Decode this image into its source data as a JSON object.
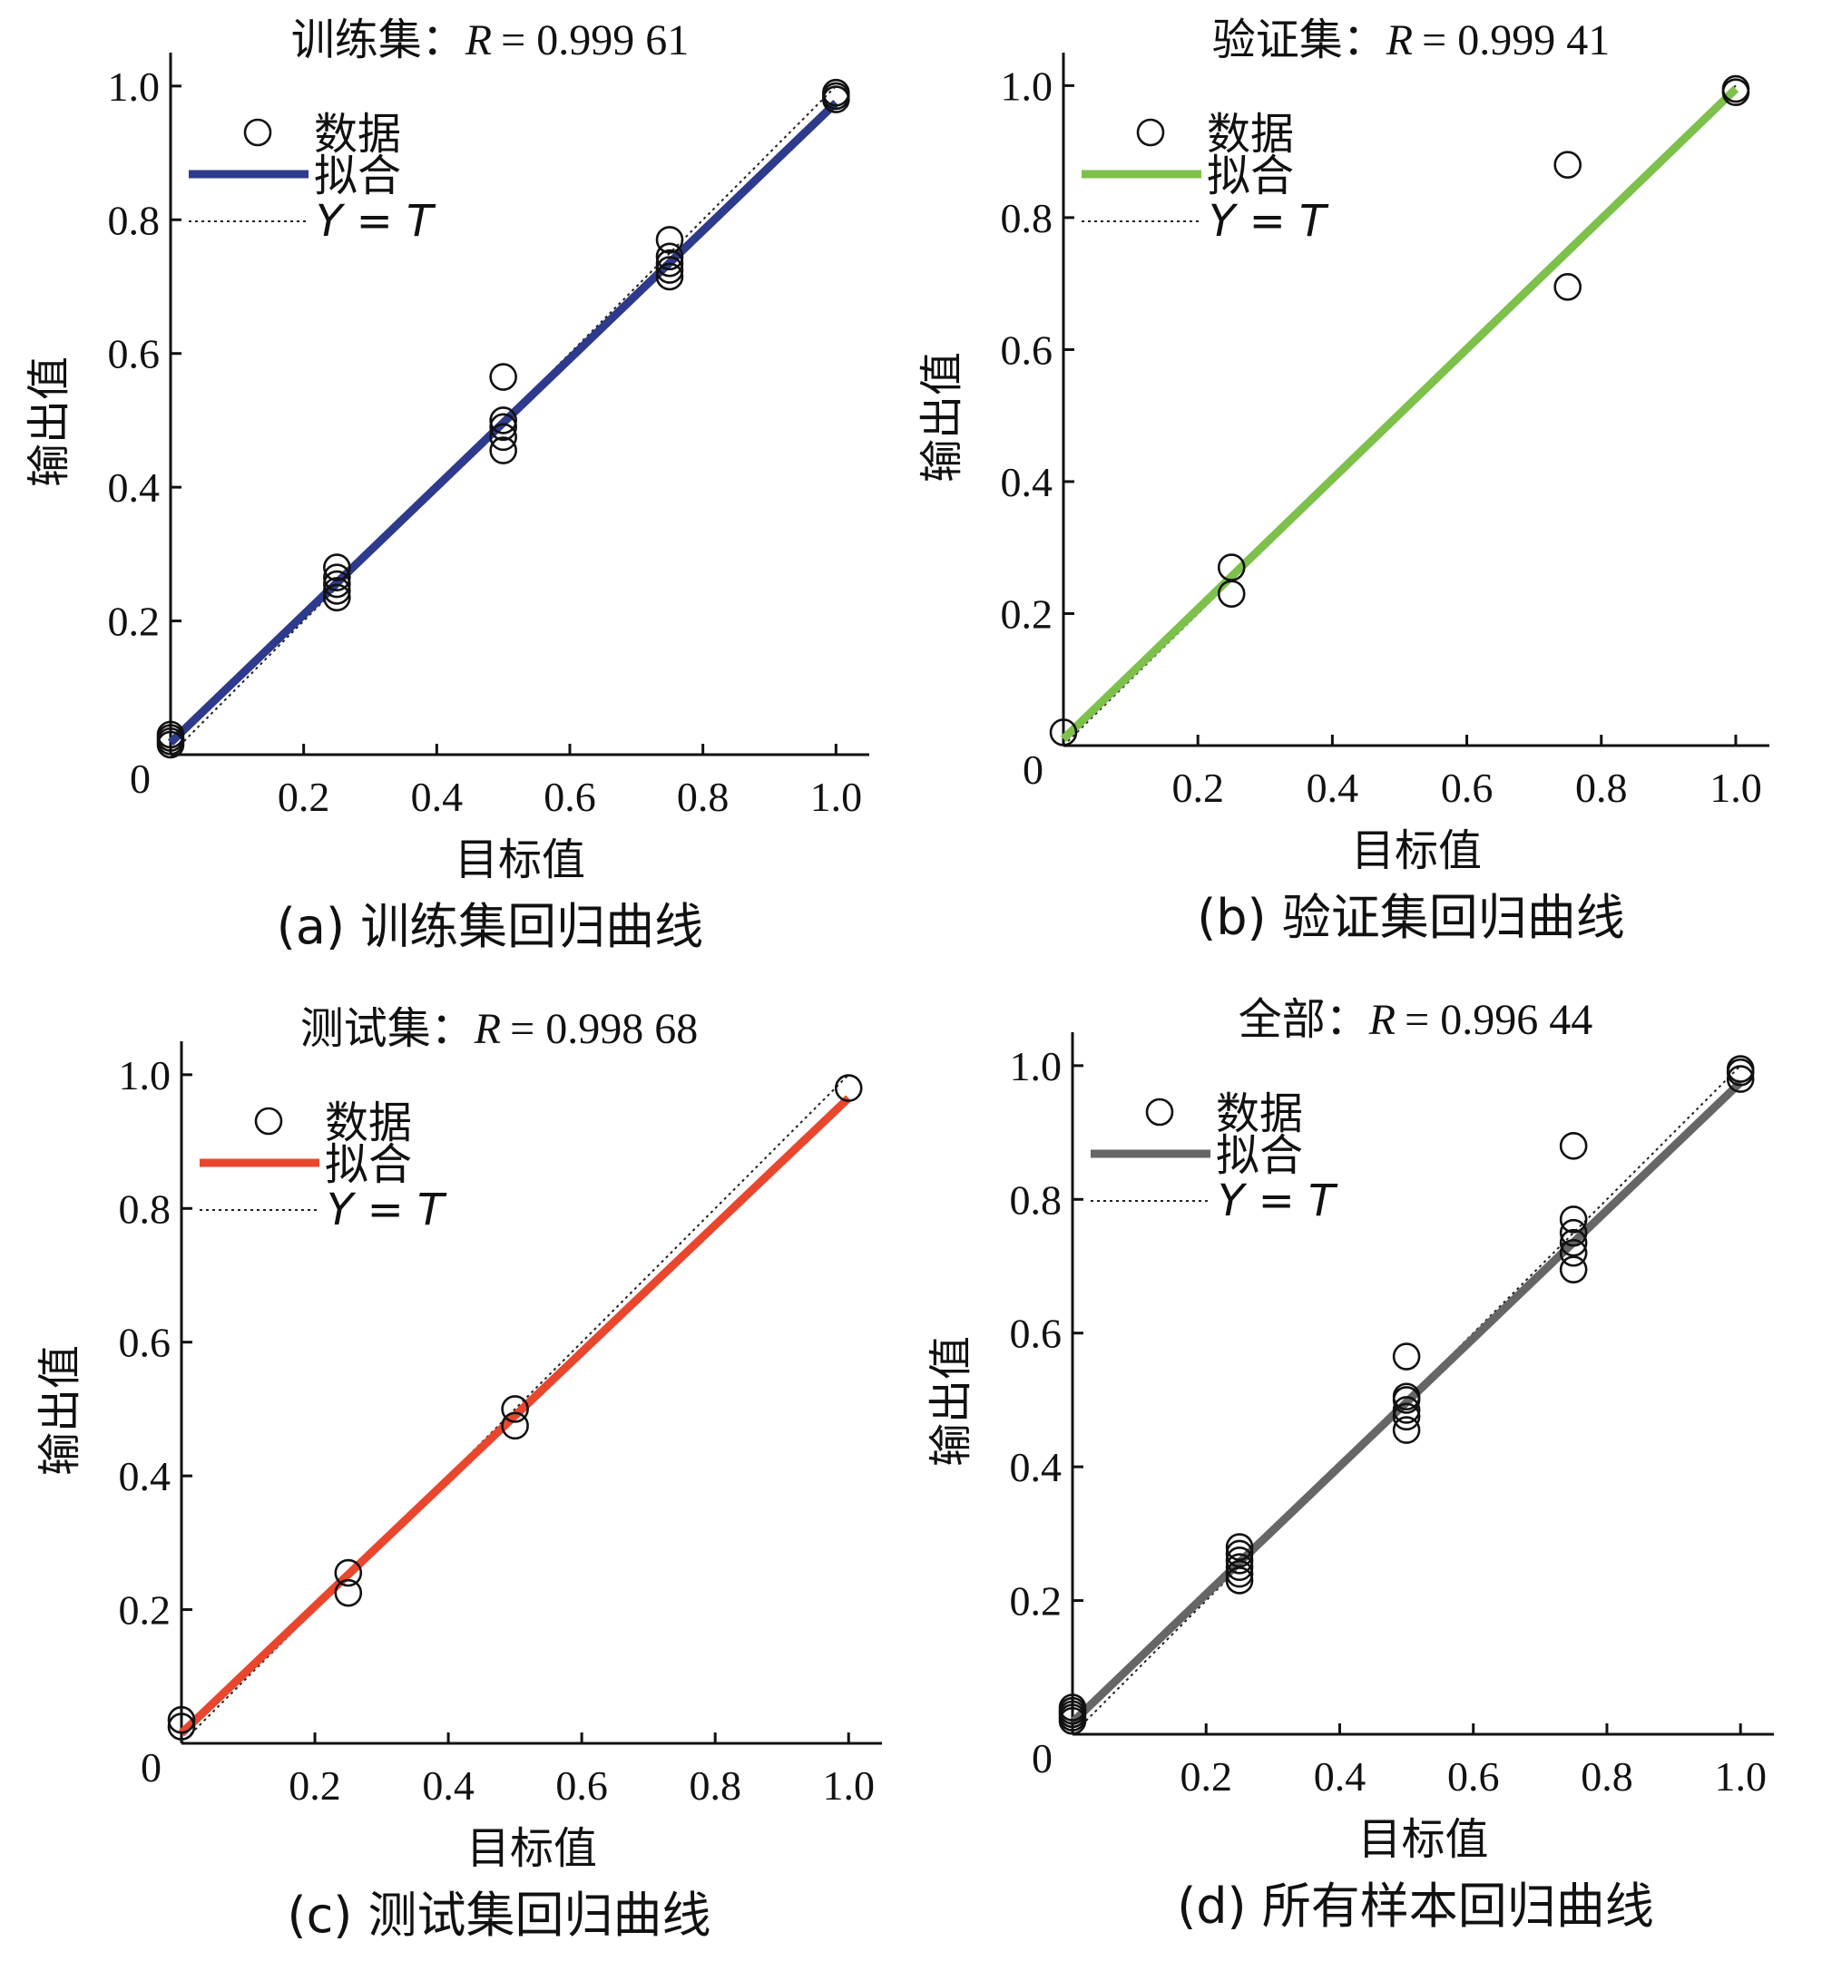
{
  "chart_data": [
    {
      "type": "scatter",
      "panel": "a",
      "title_prefix": "训练集：",
      "title_r_symbol": "R",
      "title_r_value": "= 0.999 61",
      "xlabel": "目标值",
      "ylabel": "输出值",
      "caption": "(a) 训练集回归曲线",
      "legend": {
        "data": "数据",
        "fit": "拟合",
        "ideal": "Y = T",
        "placement": "top-left"
      },
      "fit_color": "#2E3A8C",
      "xlim": [
        0,
        1.05
      ],
      "ylim": [
        0,
        1.05
      ],
      "x_ticks": [
        "0.2",
        "0.4",
        "0.6",
        "0.8",
        "1.0"
      ],
      "x_tick_values": [
        0.2,
        0.4,
        0.6,
        0.8,
        1.0
      ],
      "y_ticks": [
        "0.2",
        "0.4",
        "0.6",
        "0.8",
        "1.0"
      ],
      "y_tick_values": [
        0.2,
        0.4,
        0.6,
        0.8,
        1.0
      ],
      "origin_label": "0",
      "fit_line": {
        "x": [
          0.0,
          1.0
        ],
        "y": [
          0.018,
          0.975
        ]
      },
      "points": [
        {
          "x": 0.0,
          "y": 0.03
        },
        {
          "x": 0.0,
          "y": 0.02
        },
        {
          "x": 0.0,
          "y": 0.015
        },
        {
          "x": 0.0,
          "y": 0.025
        },
        {
          "x": 0.25,
          "y": 0.28
        },
        {
          "x": 0.25,
          "y": 0.265
        },
        {
          "x": 0.25,
          "y": 0.255
        },
        {
          "x": 0.25,
          "y": 0.245
        },
        {
          "x": 0.25,
          "y": 0.235
        },
        {
          "x": 0.5,
          "y": 0.565
        },
        {
          "x": 0.5,
          "y": 0.5
        },
        {
          "x": 0.5,
          "y": 0.49
        },
        {
          "x": 0.5,
          "y": 0.475
        },
        {
          "x": 0.5,
          "y": 0.455
        },
        {
          "x": 0.75,
          "y": 0.77
        },
        {
          "x": 0.75,
          "y": 0.745
        },
        {
          "x": 0.75,
          "y": 0.735
        },
        {
          "x": 0.75,
          "y": 0.725
        },
        {
          "x": 0.75,
          "y": 0.715
        },
        {
          "x": 1.0,
          "y": 0.99
        },
        {
          "x": 1.0,
          "y": 0.985
        },
        {
          "x": 1.0,
          "y": 0.98
        }
      ]
    },
    {
      "type": "scatter",
      "panel": "b",
      "title_prefix": "验证集：",
      "title_r_symbol": "R",
      "title_r_value": "= 0.999 41",
      "xlabel": "目标值",
      "ylabel": "输出值",
      "caption": "(b) 验证集回归曲线",
      "legend": {
        "data": "数据",
        "fit": "拟合",
        "ideal": "Y = T",
        "placement": "top-left"
      },
      "fit_color": "#7DC04B",
      "xlim": [
        0,
        1.05
      ],
      "ylim": [
        0,
        1.05
      ],
      "x_ticks": [
        "0.2",
        "0.4",
        "0.6",
        "0.8",
        "1.0"
      ],
      "x_tick_values": [
        0.2,
        0.4,
        0.6,
        0.8,
        1.0
      ],
      "y_ticks": [
        "0.2",
        "0.4",
        "0.6",
        "0.8",
        "1.0"
      ],
      "y_tick_values": [
        0.2,
        0.4,
        0.6,
        0.8,
        1.0
      ],
      "origin_label": "0",
      "fit_line": {
        "x": [
          0.0,
          1.0
        ],
        "y": [
          0.01,
          0.995
        ]
      },
      "points": [
        {
          "x": 0.0,
          "y": 0.02
        },
        {
          "x": 0.25,
          "y": 0.27
        },
        {
          "x": 0.25,
          "y": 0.23
        },
        {
          "x": 0.75,
          "y": 0.88
        },
        {
          "x": 0.75,
          "y": 0.695
        },
        {
          "x": 1.0,
          "y": 0.995
        },
        {
          "x": 1.0,
          "y": 0.99
        }
      ]
    },
    {
      "type": "scatter",
      "panel": "c",
      "title_prefix": "测试集：",
      "title_r_symbol": "R",
      "title_r_value": "= 0.998 68",
      "xlabel": "目标值",
      "ylabel": "输出值",
      "caption": "(c) 测试集回归曲线",
      "legend": {
        "data": "数据",
        "fit": "拟合",
        "ideal": "Y = T",
        "placement": "top-left"
      },
      "fit_color": "#E8472E",
      "xlim": [
        0,
        1.05
      ],
      "ylim": [
        0,
        1.05
      ],
      "x_ticks": [
        "0.2",
        "0.4",
        "0.6",
        "0.8",
        "1.0"
      ],
      "x_tick_values": [
        0.2,
        0.4,
        0.6,
        0.8,
        1.0
      ],
      "y_ticks": [
        "0.2",
        "0.4",
        "0.6",
        "0.8",
        "1.0"
      ],
      "y_tick_values": [
        0.2,
        0.4,
        0.6,
        0.8,
        1.0
      ],
      "origin_label": "0",
      "fit_line": {
        "x": [
          0.0,
          1.0
        ],
        "y": [
          0.015,
          0.965
        ]
      },
      "points": [
        {
          "x": 0.0,
          "y": 0.035
        },
        {
          "x": 0.0,
          "y": 0.025
        },
        {
          "x": 0.25,
          "y": 0.255
        },
        {
          "x": 0.25,
          "y": 0.225
        },
        {
          "x": 0.5,
          "y": 0.5
        },
        {
          "x": 0.5,
          "y": 0.475
        },
        {
          "x": 1.0,
          "y": 0.98
        }
      ]
    },
    {
      "type": "scatter",
      "panel": "d",
      "title_prefix": "全部：",
      "title_r_symbol": "R",
      "title_r_value": "= 0.996 44",
      "xlabel": "目标值",
      "ylabel": "输出值",
      "caption": "(d) 所有样本回归曲线",
      "legend": {
        "data": "数据",
        "fit": "拟合",
        "ideal": "Y = T",
        "placement": "top-left"
      },
      "fit_color": "#666666",
      "xlim": [
        0,
        1.05
      ],
      "ylim": [
        0,
        1.05
      ],
      "x_ticks": [
        "0.2",
        "0.4",
        "0.6",
        "0.8",
        "1.0"
      ],
      "x_tick_values": [
        0.2,
        0.4,
        0.6,
        0.8,
        1.0
      ],
      "y_ticks": [
        "0.2",
        "0.4",
        "0.6",
        "0.8",
        "1.0"
      ],
      "y_tick_values": [
        0.2,
        0.4,
        0.6,
        0.8,
        1.0
      ],
      "origin_label": "0",
      "fit_line": {
        "x": [
          0.0,
          1.0
        ],
        "y": [
          0.018,
          0.975
        ]
      },
      "points": [
        {
          "x": 0.0,
          "y": 0.04
        },
        {
          "x": 0.0,
          "y": 0.035
        },
        {
          "x": 0.0,
          "y": 0.03
        },
        {
          "x": 0.0,
          "y": 0.025
        },
        {
          "x": 0.0,
          "y": 0.02
        },
        {
          "x": 0.25,
          "y": 0.28
        },
        {
          "x": 0.25,
          "y": 0.27
        },
        {
          "x": 0.25,
          "y": 0.26
        },
        {
          "x": 0.25,
          "y": 0.25
        },
        {
          "x": 0.25,
          "y": 0.24
        },
        {
          "x": 0.25,
          "y": 0.23
        },
        {
          "x": 0.5,
          "y": 0.565
        },
        {
          "x": 0.5,
          "y": 0.505
        },
        {
          "x": 0.5,
          "y": 0.5
        },
        {
          "x": 0.5,
          "y": 0.485
        },
        {
          "x": 0.5,
          "y": 0.475
        },
        {
          "x": 0.5,
          "y": 0.455
        },
        {
          "x": 0.75,
          "y": 0.88
        },
        {
          "x": 0.75,
          "y": 0.77
        },
        {
          "x": 0.75,
          "y": 0.75
        },
        {
          "x": 0.75,
          "y": 0.735
        },
        {
          "x": 0.75,
          "y": 0.72
        },
        {
          "x": 0.75,
          "y": 0.695
        },
        {
          "x": 1.0,
          "y": 0.995
        },
        {
          "x": 1.0,
          "y": 0.99
        },
        {
          "x": 1.0,
          "y": 0.98
        }
      ]
    }
  ]
}
